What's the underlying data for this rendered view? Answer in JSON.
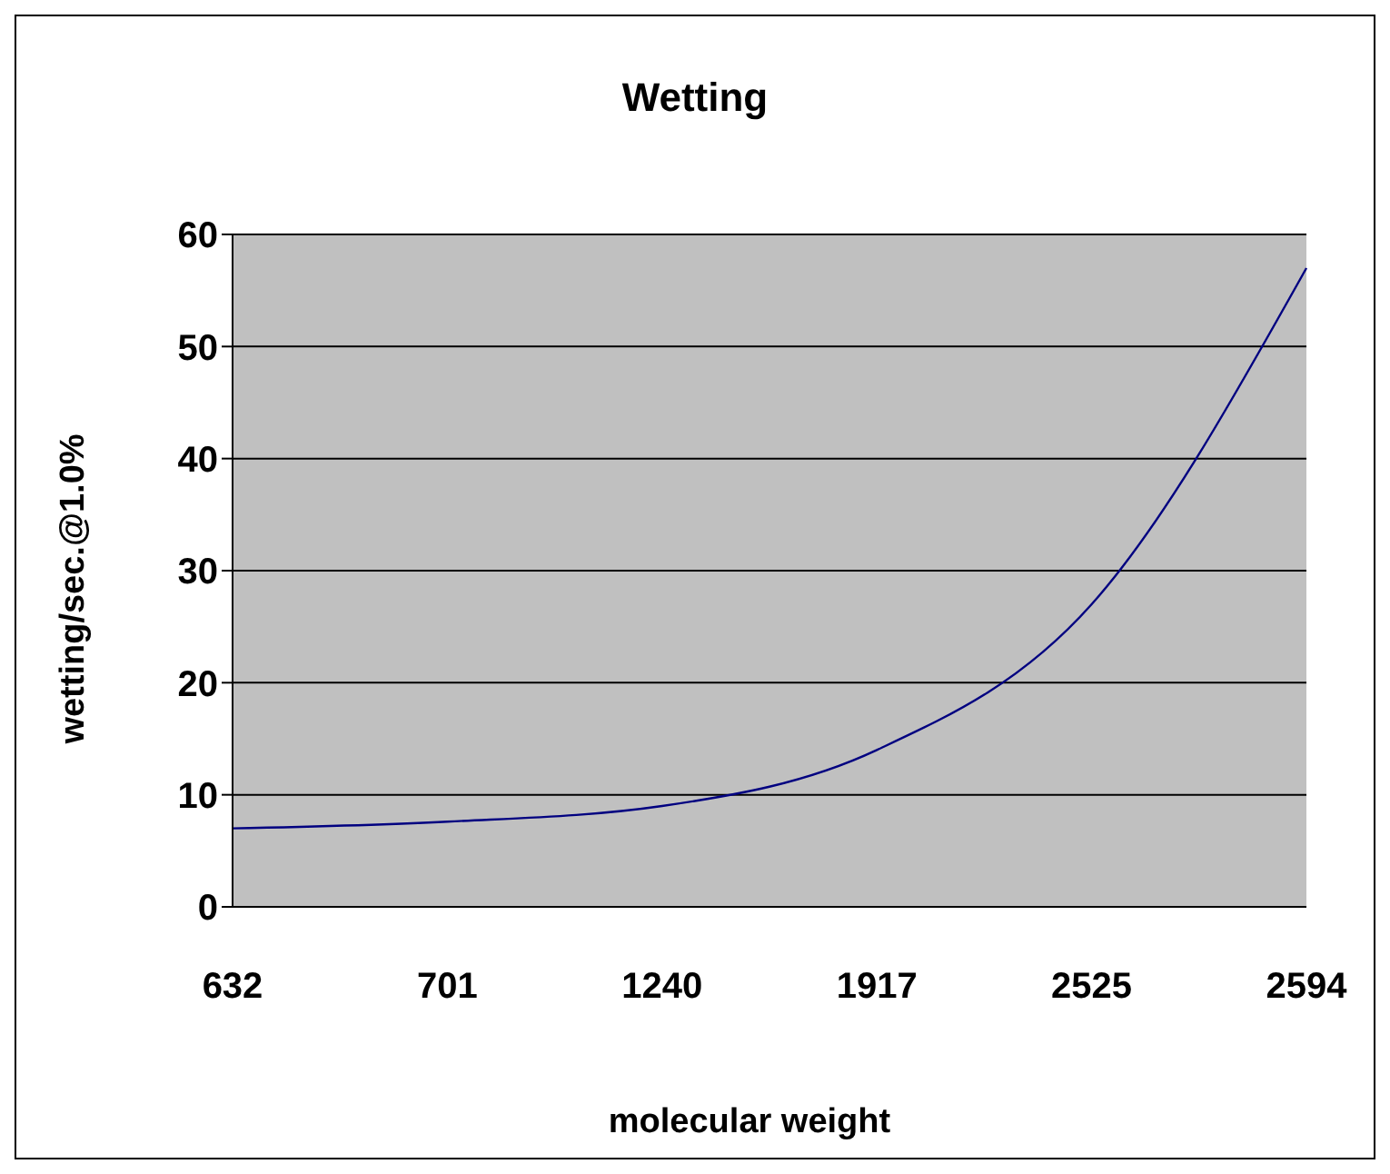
{
  "chart_data": {
    "type": "line",
    "title": "Wetting",
    "xlabel": "molecular weight",
    "ylabel": "wetting/sec.@1.0%",
    "categories": [
      "632",
      "701",
      "1240",
      "1917",
      "2525",
      "2594"
    ],
    "series": [
      {
        "color": "#000080",
        "values": [
          7,
          7.6,
          9,
          14,
          27,
          57
        ]
      }
    ],
    "ylim": [
      0,
      60
    ],
    "yticks": [
      0,
      10,
      20,
      30,
      40,
      50,
      60
    ],
    "grid": "y",
    "marker": "none",
    "line_style": "solid"
  }
}
